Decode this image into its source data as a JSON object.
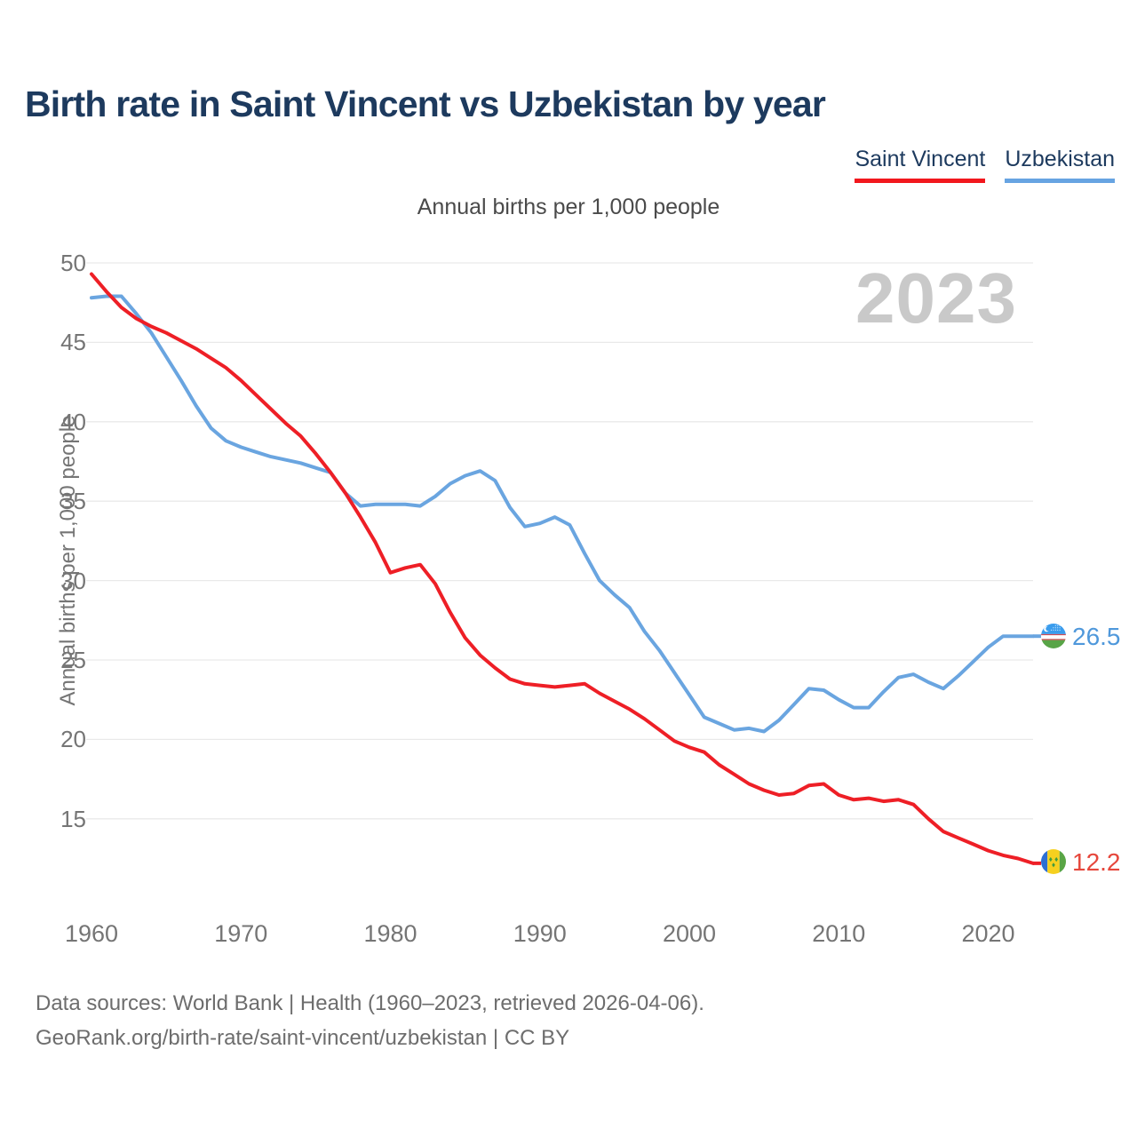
{
  "title": "Birth rate in Saint Vincent vs Uzbekistan by year",
  "subtitle": "Annual births per 1,000 people",
  "watermark_year": "2023",
  "legend": {
    "items": [
      {
        "label": "Saint Vincent",
        "color": "#f2171d"
      },
      {
        "label": "Uzbekistan",
        "color": "#67a4e2"
      }
    ]
  },
  "end_labels": {
    "uzbekistan": "26.5",
    "saint_vincent": "12.2"
  },
  "footer": {
    "line1": "Data sources: World Bank | Health (1960–2023, retrieved 2026-04-06).",
    "line2": "GeoRank.org/birth-rate/saint-vincent/uzbekistan | CC BY"
  },
  "chart_data": {
    "type": "line",
    "title": "Birth rate in Saint Vincent vs Uzbekistan by year",
    "subtitle": "Annual births per 1,000 people",
    "xlabel": "",
    "ylabel": "Annual births per 1,000 people",
    "grid": true,
    "legend_position": "top-right",
    "xlim": [
      1960,
      2023
    ],
    "ylim": [
      15,
      50
    ],
    "xticks": [
      1960,
      1970,
      1980,
      1990,
      2000,
      2010,
      2020
    ],
    "yticks": [
      50,
      45,
      40,
      35,
      30,
      25,
      20,
      15
    ],
    "x": [
      1960,
      1961,
      1962,
      1963,
      1964,
      1965,
      1966,
      1967,
      1968,
      1969,
      1970,
      1971,
      1972,
      1973,
      1974,
      1975,
      1976,
      1977,
      1978,
      1979,
      1980,
      1981,
      1982,
      1983,
      1984,
      1985,
      1986,
      1987,
      1988,
      1989,
      1990,
      1991,
      1992,
      1993,
      1994,
      1995,
      1996,
      1997,
      1998,
      1999,
      2000,
      2001,
      2002,
      2003,
      2004,
      2005,
      2006,
      2007,
      2008,
      2009,
      2010,
      2011,
      2012,
      2013,
      2014,
      2015,
      2016,
      2017,
      2018,
      2019,
      2020,
      2021,
      2022,
      2023
    ],
    "series": [
      {
        "name": "Saint Vincent",
        "color": "#ee1f26",
        "end_value": 12.2,
        "values": [
          49.3,
          48.2,
          47.2,
          46.5,
          46.0,
          45.6,
          45.1,
          44.6,
          44.0,
          43.4,
          42.6,
          41.7,
          40.8,
          39.9,
          39.1,
          38.0,
          36.8,
          35.5,
          34.0,
          32.4,
          30.5,
          30.8,
          31.0,
          29.8,
          28.0,
          26.4,
          25.3,
          24.5,
          23.8,
          23.5,
          23.4,
          23.3,
          23.4,
          23.5,
          22.9,
          22.4,
          21.9,
          21.3,
          20.6,
          19.9,
          19.5,
          19.2,
          18.4,
          17.8,
          17.2,
          16.8,
          16.5,
          16.6,
          17.1,
          17.2,
          16.5,
          16.2,
          16.3,
          16.1,
          16.2,
          15.9,
          15.0,
          14.2,
          13.8,
          13.4,
          13.0,
          12.7,
          12.5,
          12.2
        ]
      },
      {
        "name": "Uzbekistan",
        "color": "#6aa5e0",
        "end_value": 26.5,
        "values": [
          47.8,
          47.9,
          47.9,
          46.8,
          45.6,
          44.1,
          42.6,
          41.0,
          39.6,
          38.8,
          38.4,
          38.1,
          37.8,
          37.6,
          37.4,
          37.1,
          36.8,
          35.5,
          34.7,
          34.8,
          34.8,
          34.8,
          34.7,
          35.3,
          36.1,
          36.6,
          36.9,
          36.3,
          34.6,
          33.4,
          33.6,
          34.0,
          33.5,
          31.7,
          30.0,
          29.1,
          28.3,
          26.8,
          25.6,
          24.2,
          22.8,
          21.4,
          21.0,
          20.6,
          20.7,
          20.5,
          21.2,
          22.2,
          23.2,
          23.1,
          22.5,
          22.0,
          22.0,
          23.0,
          23.9,
          24.1,
          23.6,
          23.2,
          24.0,
          24.9,
          25.8,
          26.5,
          26.5,
          26.5
        ]
      }
    ]
  }
}
